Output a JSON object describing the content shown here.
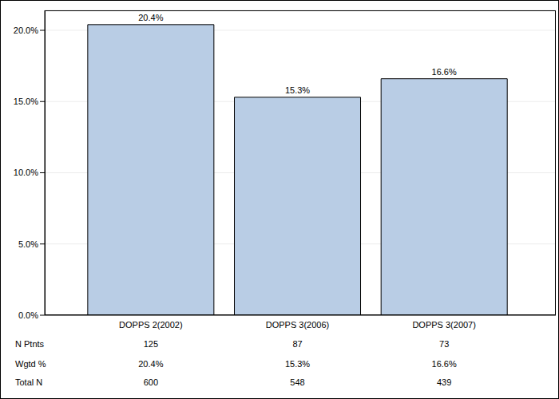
{
  "chart_data": {
    "type": "bar",
    "categories": [
      "DOPPS 2(2002)",
      "DOPPS 3(2006)",
      "DOPPS 3(2007)"
    ],
    "values": [
      20.4,
      15.3,
      16.6
    ],
    "value_labels": [
      "20.4%",
      "15.3%",
      "16.6%"
    ],
    "data_labels": true,
    "color": "#b9cde5",
    "ylim": [
      0,
      21.4
    ],
    "yticks": [
      {
        "value": 0,
        "label": "0.0%"
      },
      {
        "value": 5,
        "label": "5.0%"
      },
      {
        "value": 10,
        "label": "10.0%"
      },
      {
        "value": 15,
        "label": "15.0%"
      },
      {
        "value": 20,
        "label": "20.0%"
      }
    ],
    "grid": true,
    "table": {
      "rows": [
        {
          "label": "N Ptnts",
          "values": [
            "125",
            "87",
            "73"
          ]
        },
        {
          "label": "Wgtd %",
          "values": [
            "20.4%",
            "15.3%",
            "16.6%"
          ]
        },
        {
          "label": "Total N",
          "values": [
            "600",
            "548",
            "439"
          ]
        }
      ]
    }
  }
}
